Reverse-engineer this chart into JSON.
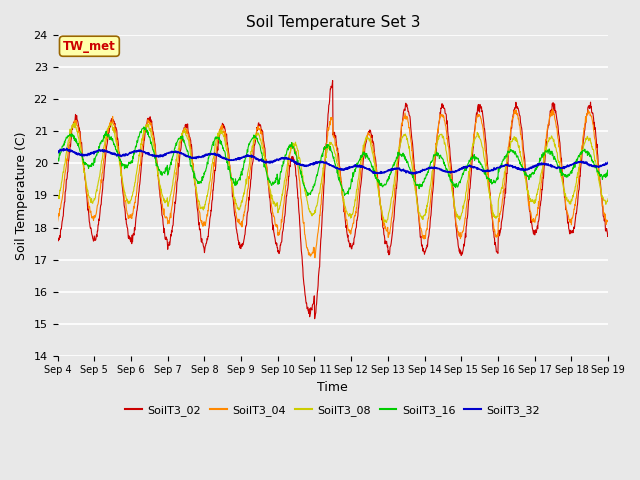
{
  "title": "Soil Temperature Set 3",
  "xlabel": "Time",
  "ylabel": "Soil Temperature (C)",
  "ylim": [
    14.0,
    24.0
  ],
  "yticks": [
    14.0,
    15.0,
    16.0,
    17.0,
    18.0,
    19.0,
    20.0,
    21.0,
    22.0,
    23.0,
    24.0
  ],
  "x_labels": [
    "Sep 4",
    "Sep 5",
    "Sep 6",
    "Sep 7",
    "Sep 8",
    "Sep 9",
    "Sep 10",
    "Sep 11",
    "Sep 12",
    "Sep 13",
    "Sep 14",
    "Sep 15",
    "Sep 16",
    "Sep 17",
    "Sep 18",
    "Sep 19"
  ],
  "series_colors": {
    "SoilT3_02": "#cc0000",
    "SoilT3_04": "#ff8800",
    "SoilT3_08": "#cccc00",
    "SoilT3_16": "#00cc00",
    "SoilT3_32": "#0000cc"
  },
  "annotation_text": "TW_met",
  "annotation_box_facecolor": "#ffffaa",
  "annotation_box_edgecolor": "#996600",
  "annotation_text_color": "#cc0000",
  "background_color": "#e8e8e8",
  "plot_bg_color": "#e8e8e8",
  "grid_color": "#ffffff",
  "title_fontsize": 11,
  "axis_label_fontsize": 9,
  "tick_fontsize": 8
}
